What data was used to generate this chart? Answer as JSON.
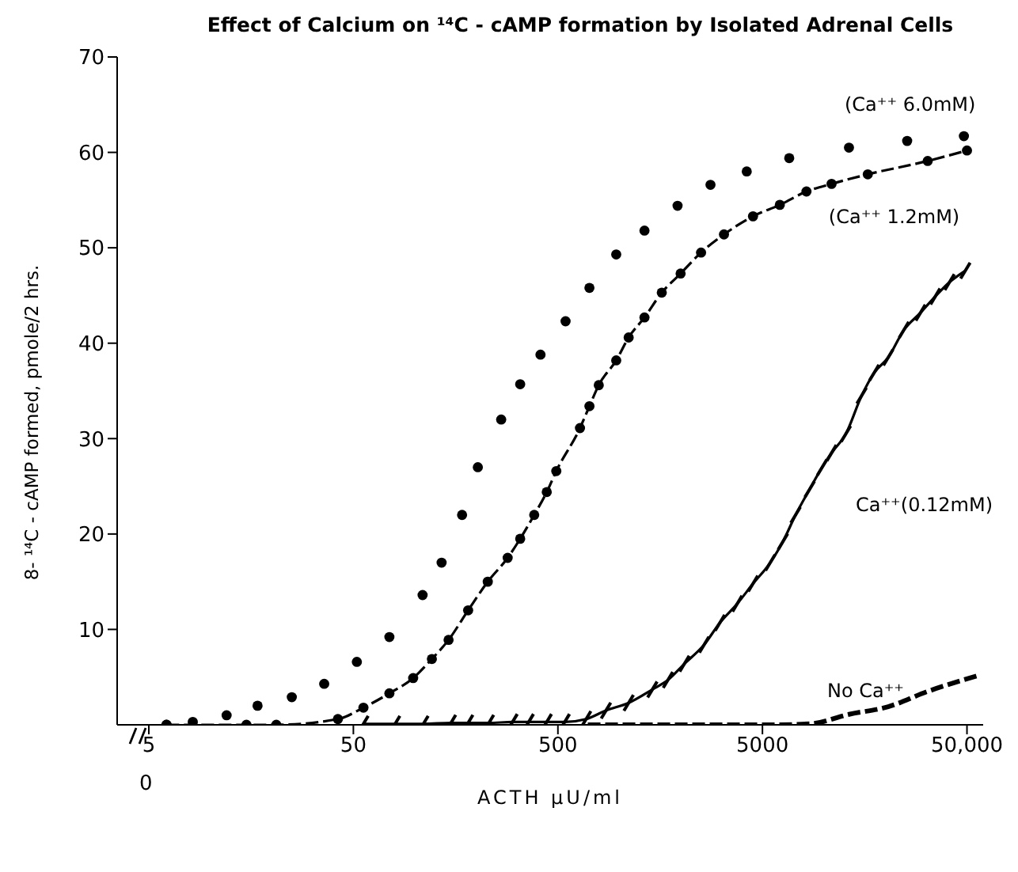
{
  "chart_data": {
    "type": "line",
    "title": "Effect of Calcium on ¹⁴C - cAMP formation by Isolated Adrenal Cells",
    "xlabel": "ACTH µU/ml",
    "ylabel": "8- ¹⁴C - cAMP formed,  pmole/2 hrs.",
    "log": "x",
    "xlim": [
      3.5,
      60000
    ],
    "xticks": [
      5,
      50,
      500,
      5000,
      {
        "value": 50000,
        "label": "50,000"
      }
    ],
    "annotations": [
      "0"
    ],
    "ylim": [
      0,
      70
    ],
    "yticks": [
      10,
      20,
      30,
      40,
      50,
      60,
      70
    ],
    "grid": false,
    "legend": false,
    "series": [
      {
        "name": "(Ca⁺⁺ 6.0mM)",
        "type": "scatter",
        "marker": "circle",
        "color": "#000000",
        "x": [
          6.1,
          8.2,
          12,
          17,
          25,
          36,
          52,
          75,
          109,
          135,
          170,
          203,
          264,
          327,
          411,
          545,
          713,
          964,
          1325,
          1923,
          2786,
          4190,
          6760,
          13245,
          25500,
          48300
        ],
        "values": [
          0,
          0.3,
          1,
          2,
          2.9,
          4.3,
          6.6,
          9.2,
          13.6,
          17,
          22,
          27,
          32,
          35.7,
          38.8,
          42.3,
          45.8,
          49.3,
          51.8,
          54.4,
          56.6,
          58,
          59.4,
          60.5,
          61.2,
          61.7
        ]
      },
      {
        "name": "(Ca⁺⁺ 1.2mM)",
        "marker": "circle",
        "line_style": "dashed",
        "color": "#000000",
        "x": [
          6.1,
          15,
          21,
          42,
          56,
          75,
          98,
          121,
          146,
          182,
          227,
          284,
          327,
          383,
          441,
          491,
          641,
          713,
          792,
          964,
          1109,
          1325,
          1610,
          1990,
          2505,
          3243,
          4497,
          6080,
          8207,
          10890,
          16370,
          32130,
          50000
        ],
        "values": [
          0,
          0,
          0,
          0.6,
          1.8,
          3.3,
          4.9,
          6.9,
          8.9,
          12,
          15,
          17.5,
          19.5,
          22,
          24.4,
          26.6,
          31.1,
          33.4,
          35.6,
          38.2,
          40.6,
          42.7,
          45.3,
          47.3,
          49.5,
          51.4,
          53.3,
          54.5,
          55.9,
          56.7,
          57.7,
          59.1,
          60.2
        ]
      },
      {
        "name": "Ca⁺⁺(0.12mM)",
        "marker": "cross",
        "line_style": "solid",
        "color": "#000000",
        "x": [
          56,
          80,
          110,
          150,
          182,
          230,
          300,
          360,
          441,
          540,
          687,
          859,
          1109,
          1448,
          1726,
          2078,
          2594,
          3097,
          3767,
          4497,
          5460,
          6295,
          7262,
          8510,
          9796,
          10890,
          12790,
          15275,
          17590,
          20600,
          24600,
          29650,
          35000,
          41100,
          49100
        ],
        "values": [
          0.1,
          0.1,
          0.1,
          0.2,
          0.2,
          0.2,
          0.3,
          0.3,
          0.3,
          0.3,
          0.6,
          1.5,
          2.3,
          3.7,
          4.7,
          6.4,
          8.4,
          10.7,
          12.7,
          14.8,
          17,
          19.2,
          22,
          24.7,
          27,
          28.5,
          30.5,
          34.5,
          36.9,
          38.5,
          41.4,
          43.2,
          44.9,
          46.4,
          47.6
        ]
      },
      {
        "name": "No Ca⁺⁺",
        "marker": "none",
        "line_style": "dashed",
        "color": "#000000",
        "x": [
          700,
          2078,
          5460,
          8510,
          13245,
          20600,
          32130,
          57650
        ],
        "values": [
          0,
          0,
          0,
          0.1,
          1.1,
          1.9,
          3.5,
          5.2
        ]
      }
    ]
  }
}
